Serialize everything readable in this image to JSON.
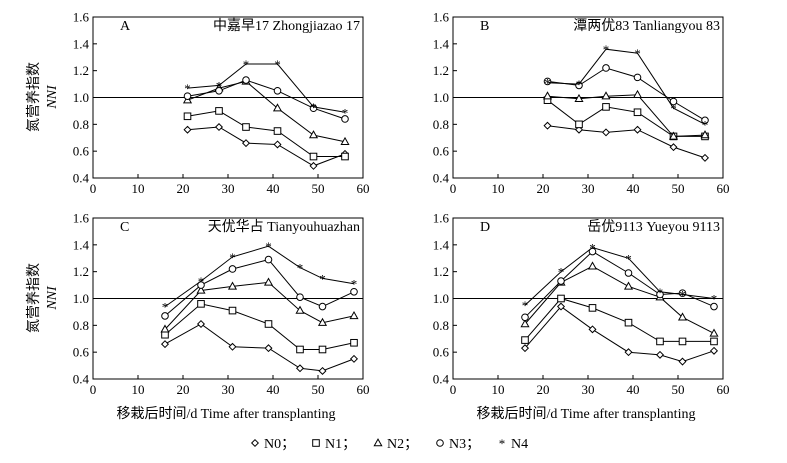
{
  "chart_data": {
    "type": "line",
    "ylabel_cn": "氮营养指数",
    "ylabel_en": "NNI",
    "xlabel": "移栽后时间/d  Time after transplanting",
    "xlim": [
      0,
      60
    ],
    "ylim": [
      0.4,
      1.6
    ],
    "xticks": [
      "0",
      "10",
      "20",
      "30",
      "40",
      "50",
      "60"
    ],
    "yticks": [
      "0.4",
      "0.6",
      "0.8",
      "1.0",
      "1.2",
      "1.4",
      "1.6"
    ],
    "reference_line": 1.0,
    "legend": [
      "N0；",
      "N1；",
      "N2；",
      "N3；",
      "N4"
    ],
    "panels": [
      {
        "letter": "A",
        "title": "中嘉早17   Zhongjiazao 17",
        "series": [
          {
            "name": "N0",
            "marker": "diamond",
            "x": [
              21,
              28,
              34,
              41,
              49,
              56
            ],
            "y": [
              0.76,
              0.78,
              0.66,
              0.65,
              0.49,
              0.58
            ]
          },
          {
            "name": "N1",
            "marker": "square",
            "x": [
              21,
              28,
              34,
              41,
              49,
              56
            ],
            "y": [
              0.86,
              0.9,
              0.78,
              0.75,
              0.56,
              0.56
            ]
          },
          {
            "name": "N2",
            "marker": "triangle",
            "x": [
              21,
              28,
              34,
              41,
              49,
              56
            ],
            "y": [
              0.98,
              1.07,
              1.12,
              0.92,
              0.72,
              0.67
            ]
          },
          {
            "name": "N3",
            "marker": "circle",
            "x": [
              21,
              28,
              34,
              41,
              49,
              56
            ],
            "y": [
              1.01,
              1.05,
              1.13,
              1.05,
              0.92,
              0.84
            ]
          },
          {
            "name": "N4",
            "marker": "star",
            "x": [
              21,
              28,
              34,
              41,
              49,
              56
            ],
            "y": [
              1.07,
              1.09,
              1.25,
              1.25,
              0.93,
              0.89
            ]
          }
        ]
      },
      {
        "letter": "B",
        "title": "潭两优83   Tanliangyou 83",
        "series": [
          {
            "name": "N0",
            "marker": "diamond",
            "x": [
              21,
              28,
              34,
              41,
              49,
              56
            ],
            "y": [
              0.79,
              0.76,
              0.74,
              0.76,
              0.63,
              0.55
            ]
          },
          {
            "name": "N1",
            "marker": "square",
            "x": [
              21,
              28,
              34,
              41,
              49,
              56
            ],
            "y": [
              0.98,
              0.8,
              0.93,
              0.89,
              0.71,
              0.71
            ]
          },
          {
            "name": "N2",
            "marker": "triangle",
            "x": [
              21,
              28,
              34,
              41,
              49,
              56
            ],
            "y": [
              1.01,
              0.99,
              1.01,
              1.02,
              0.71,
              0.72
            ]
          },
          {
            "name": "N3",
            "marker": "circle",
            "x": [
              21,
              28,
              34,
              41,
              49,
              56
            ],
            "y": [
              1.12,
              1.09,
              1.22,
              1.15,
              0.97,
              0.83
            ]
          },
          {
            "name": "N4",
            "marker": "star",
            "x": [
              21,
              28,
              34,
              41,
              49,
              56
            ],
            "y": [
              1.11,
              1.1,
              1.36,
              1.33,
              0.92,
              0.8
            ]
          }
        ]
      },
      {
        "letter": "C",
        "title": "天优华占  Tianyouhuazhan",
        "series": [
          {
            "name": "N0",
            "marker": "diamond",
            "x": [
              16,
              24,
              31,
              39,
              46,
              51,
              58
            ],
            "y": [
              0.66,
              0.81,
              0.64,
              0.63,
              0.48,
              0.46,
              0.55
            ]
          },
          {
            "name": "N1",
            "marker": "square",
            "x": [
              16,
              24,
              31,
              39,
              46,
              51,
              58
            ],
            "y": [
              0.73,
              0.96,
              0.91,
              0.81,
              0.62,
              0.62,
              0.67
            ]
          },
          {
            "name": "N2",
            "marker": "triangle",
            "x": [
              16,
              24,
              31,
              39,
              46,
              51,
              58
            ],
            "y": [
              0.77,
              1.06,
              1.09,
              1.12,
              0.91,
              0.82,
              0.87
            ]
          },
          {
            "name": "N3",
            "marker": "circle",
            "x": [
              16,
              24,
              31,
              39,
              46,
              51,
              58
            ],
            "y": [
              0.87,
              1.1,
              1.22,
              1.29,
              1.01,
              0.94,
              1.05
            ]
          },
          {
            "name": "N4",
            "marker": "star",
            "x": [
              16,
              24,
              31,
              39,
              46,
              51,
              58
            ],
            "y": [
              0.94,
              1.13,
              1.31,
              1.39,
              1.23,
              1.15,
              1.11
            ]
          }
        ]
      },
      {
        "letter": "D",
        "title": "岳优9113   Yueyou 9113",
        "series": [
          {
            "name": "N0",
            "marker": "diamond",
            "x": [
              16,
              24,
              31,
              39,
              46,
              51,
              58
            ],
            "y": [
              0.63,
              0.94,
              0.77,
              0.6,
              0.58,
              0.53,
              0.61
            ]
          },
          {
            "name": "N1",
            "marker": "square",
            "x": [
              16,
              24,
              31,
              39,
              46,
              51,
              58
            ],
            "y": [
              0.69,
              1.0,
              0.93,
              0.82,
              0.68,
              0.68,
              0.68
            ]
          },
          {
            "name": "N2",
            "marker": "triangle",
            "x": [
              16,
              24,
              31,
              39,
              46,
              51,
              58
            ],
            "y": [
              0.81,
              1.12,
              1.24,
              1.09,
              1.01,
              0.86,
              0.74
            ]
          },
          {
            "name": "N3",
            "marker": "circle",
            "x": [
              16,
              24,
              31,
              39,
              46,
              51,
              58
            ],
            "y": [
              0.86,
              1.13,
              1.35,
              1.19,
              1.03,
              1.04,
              0.94
            ]
          },
          {
            "name": "N4",
            "marker": "star",
            "x": [
              16,
              24,
              31,
              39,
              46,
              51,
              58
            ],
            "y": [
              0.95,
              1.2,
              1.38,
              1.3,
              1.05,
              1.03,
              1.0
            ]
          }
        ]
      }
    ]
  }
}
